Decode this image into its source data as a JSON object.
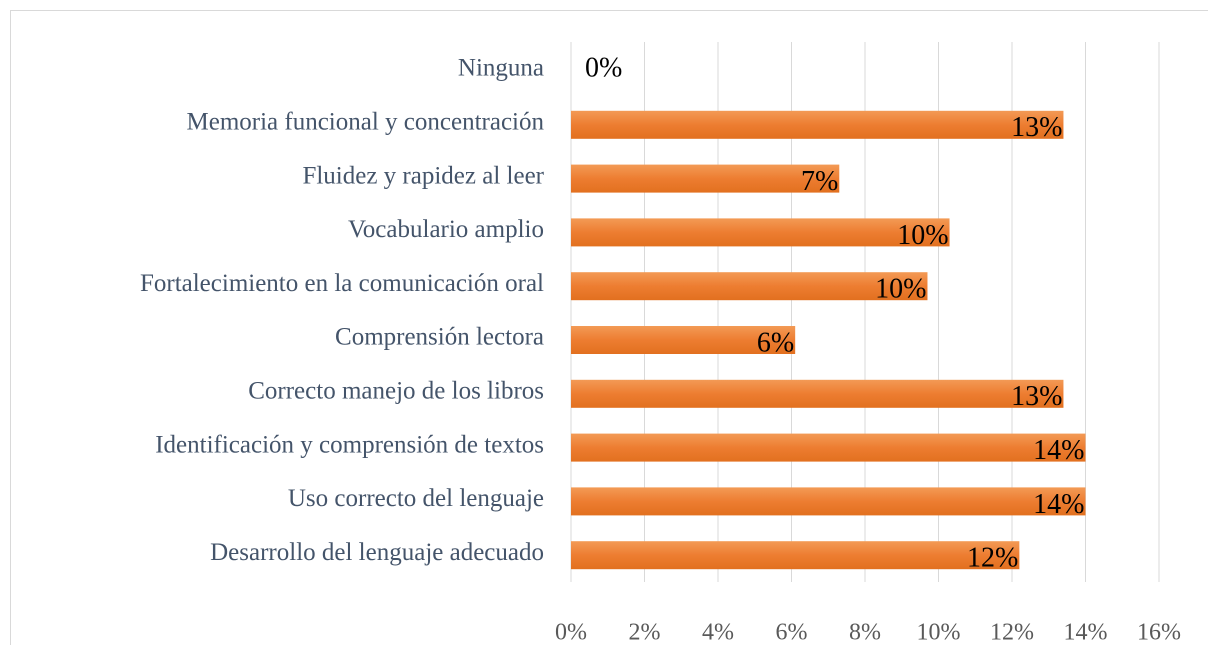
{
  "chart_data": {
    "type": "bar",
    "orientation": "horizontal",
    "categories": [
      "Ninguna",
      "Memoria funcional y concentración",
      "Fluidez y rapidez al leer",
      "Vocabulario amplio",
      "Fortalecimiento en la comunicación oral",
      "Comprensión lectora",
      "Correcto manejo de los libros",
      "Identificación y comprensión de textos",
      "Uso correcto del lenguaje",
      "Desarrollo del lenguaje adecuado"
    ],
    "values": [
      0,
      13.4,
      7.3,
      10.3,
      9.7,
      6.1,
      13.4,
      14.0,
      14.0,
      12.2
    ],
    "value_labels": [
      "0%",
      "13%",
      "7%",
      "10%",
      "10%",
      "6%",
      "13%",
      "14%",
      "14%",
      "12%"
    ],
    "color": "#ed7d31",
    "xlim": [
      0,
      16
    ],
    "xticks": [
      {
        "value": 0,
        "label": "0%"
      },
      {
        "value": 2,
        "label": "2%"
      },
      {
        "value": 4,
        "label": "4%"
      },
      {
        "value": 6,
        "label": "6%"
      },
      {
        "value": 8,
        "label": "8%"
      },
      {
        "value": 10,
        "label": "10%"
      },
      {
        "value": 12,
        "label": "12%"
      },
      {
        "value": 14,
        "label": "14%"
      },
      {
        "value": 16,
        "label": "16%"
      }
    ],
    "grid": true
  }
}
